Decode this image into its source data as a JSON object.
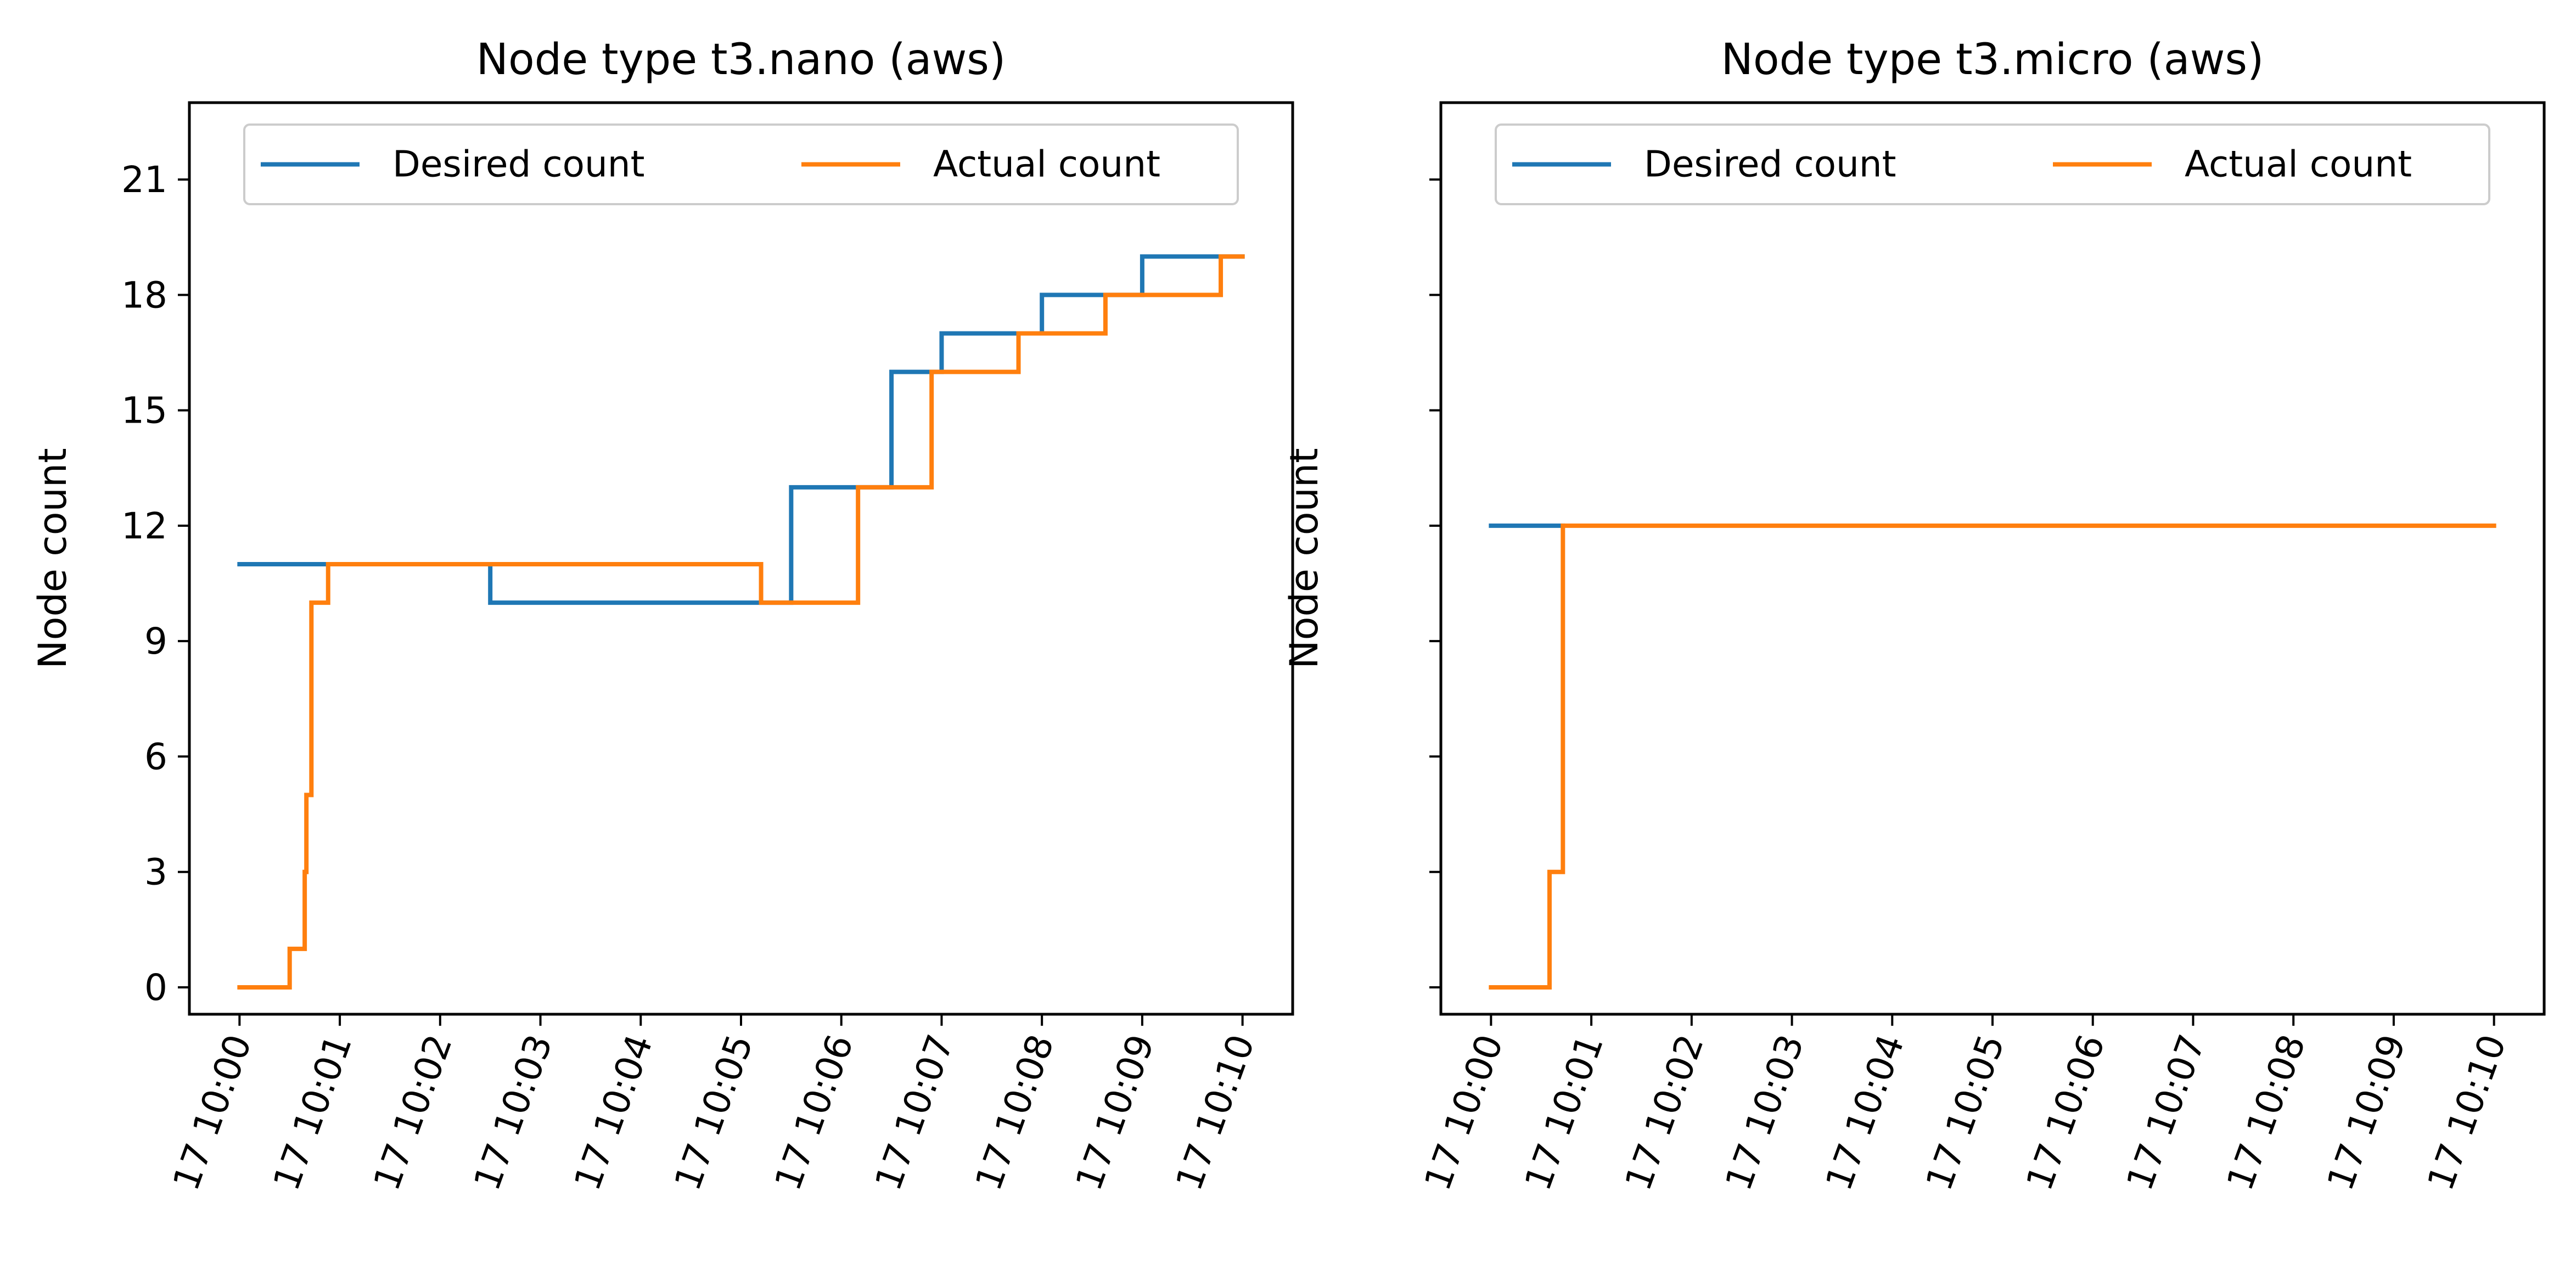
{
  "colors": {
    "desired": "#1f77b4",
    "actual": "#ff7f0e"
  },
  "chart_data": [
    {
      "type": "line",
      "step": true,
      "title": "Node type t3.nano (aws)",
      "xlabel": "",
      "ylabel": "Node count",
      "xlim": [
        "17 09:59:30",
        "17 10:10:30"
      ],
      "ylim": [
        -0.7,
        23
      ],
      "yticks": [
        0,
        3,
        6,
        9,
        12,
        15,
        18,
        21
      ],
      "xticks": [
        "17 10:00",
        "17 10:01",
        "17 10:02",
        "17 10:03",
        "17 10:04",
        "17 10:05",
        "17 10:06",
        "17 10:07",
        "17 10:08",
        "17 10:09",
        "17 10:10"
      ],
      "grid": false,
      "legend": {
        "placement": "upper-center",
        "columns": 2
      },
      "series": [
        {
          "name": "Desired count",
          "points": [
            [
              "17 10:00:00",
              11
            ],
            [
              "17 10:02:30",
              10
            ],
            [
              "17 10:05:30",
              13
            ],
            [
              "17 10:06:30",
              16
            ],
            [
              "17 10:07:00",
              17
            ],
            [
              "17 10:08:00",
              18
            ],
            [
              "17 10:09:00",
              19
            ],
            [
              "17 10:10:00",
              19
            ]
          ]
        },
        {
          "name": "Actual count",
          "points": [
            [
              "17 10:00:00",
              0
            ],
            [
              "17 10:00:30",
              1
            ],
            [
              "17 10:00:39",
              3
            ],
            [
              "17 10:00:40",
              5
            ],
            [
              "17 10:00:43",
              10
            ],
            [
              "17 10:00:53",
              11
            ],
            [
              "17 10:05:12",
              10
            ],
            [
              "17 10:06:10",
              13
            ],
            [
              "17 10:06:54",
              16
            ],
            [
              "17 10:07:46",
              17
            ],
            [
              "17 10:08:38",
              18
            ],
            [
              "17 10:09:47",
              19
            ],
            [
              "17 10:10:00",
              19
            ]
          ]
        }
      ]
    },
    {
      "type": "line",
      "step": true,
      "title": "Node type t3.micro (aws)",
      "xlabel": "",
      "ylabel": "Node count",
      "xlim": [
        "17 09:59:30",
        "17 10:10:30"
      ],
      "ylim": [
        -0.7,
        23
      ],
      "yticks": [
        0,
        3,
        6,
        9,
        12,
        15,
        18,
        21
      ],
      "yticklabels_visible": false,
      "xticks": [
        "17 10:00",
        "17 10:01",
        "17 10:02",
        "17 10:03",
        "17 10:04",
        "17 10:05",
        "17 10:06",
        "17 10:07",
        "17 10:08",
        "17 10:09",
        "17 10:10"
      ],
      "grid": false,
      "legend": {
        "placement": "upper-center",
        "columns": 2
      },
      "series": [
        {
          "name": "Desired count",
          "points": [
            [
              "17 10:00:00",
              12
            ],
            [
              "17 10:00:43",
              12
            ]
          ]
        },
        {
          "name": "Actual count",
          "points": [
            [
              "17 10:00:00",
              0
            ],
            [
              "17 10:00:35",
              3
            ],
            [
              "17 10:00:43",
              12
            ],
            [
              "17 10:10:00",
              12
            ]
          ]
        }
      ]
    }
  ]
}
